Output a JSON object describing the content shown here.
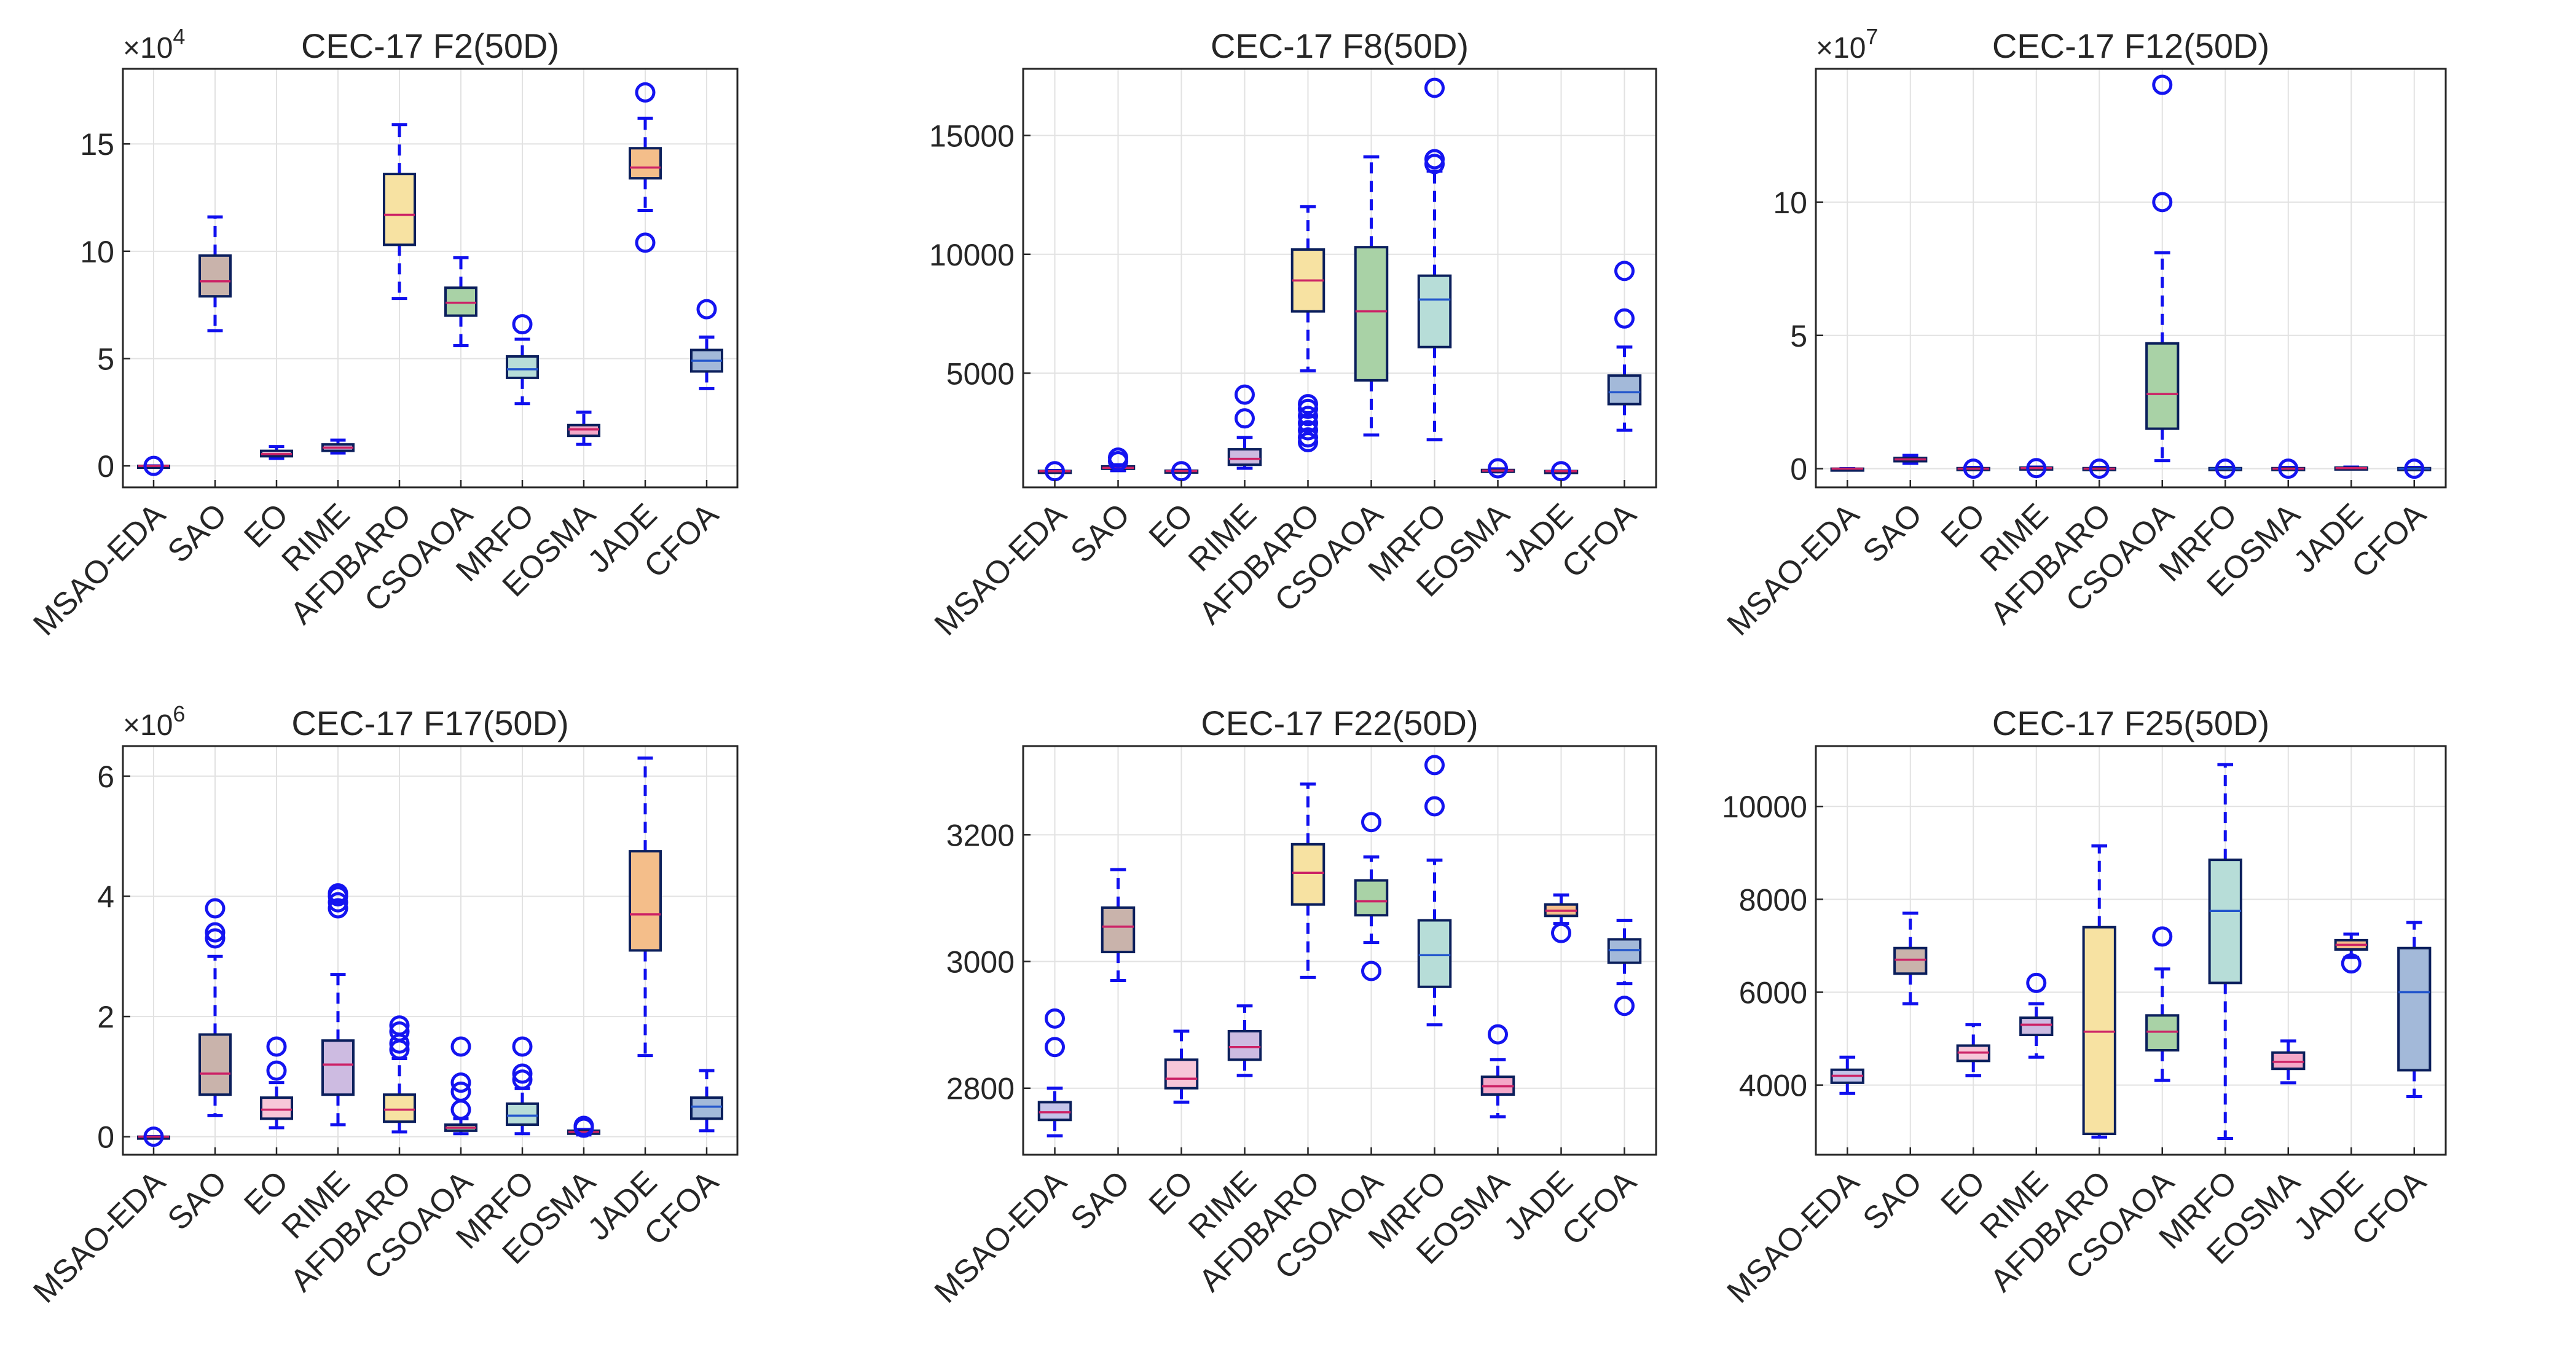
{
  "figure": {
    "label": "Box plots of algorithm results on CEC-17 functions (50D)"
  },
  "colors": {
    "box_edge": "#0b1f5c",
    "whisker": "#1010ee",
    "outlier": "#1414f0",
    "grid": "#e2e2e2",
    "axis": "#262626",
    "fills": [
      "#c3c3e9",
      "#c9b3ab",
      "#f7c6d8",
      "#cdbbe1",
      "#f7e2a2",
      "#a9d2a6",
      "#b7ddd8",
      "#f4a8c8",
      "#f4be8a",
      "#a3b9d9"
    ],
    "medians": [
      "#cc2266",
      "#cc2266",
      "#cc2266",
      "#cc2266",
      "#cc2266",
      "#cc2266",
      "#2255cc",
      "#cc2266",
      "#cc2266",
      "#2255cc"
    ]
  },
  "chart_data": [
    {
      "type": "box",
      "title": "CEC-17 F2(50D)",
      "exponent": "4",
      "categories": [
        "MSAO-EDA",
        "SAO",
        "EO",
        "RIME",
        "AFDBARO",
        "CSOAOA",
        "MRFO",
        "EOSMA",
        "JADE",
        "CFOA"
      ],
      "ylim": [
        -1,
        18.5
      ],
      "yticks": [
        0,
        5,
        10,
        15
      ],
      "ytick_labels": [
        "0",
        "5",
        "10",
        "15"
      ],
      "boxes": [
        {
          "min": 0,
          "q1": 0,
          "median": 0,
          "q3": 0,
          "max": 0,
          "outliers": [
            0
          ]
        },
        {
          "min": 6.3,
          "q1": 7.9,
          "median": 8.6,
          "q3": 9.8,
          "max": 11.6,
          "outliers": []
        },
        {
          "min": 0.35,
          "q1": 0.45,
          "median": 0.55,
          "q3": 0.7,
          "max": 0.9,
          "outliers": []
        },
        {
          "min": 0.6,
          "q1": 0.7,
          "median": 0.85,
          "q3": 1.0,
          "max": 1.2,
          "outliers": []
        },
        {
          "min": 7.8,
          "q1": 10.3,
          "median": 11.7,
          "q3": 13.6,
          "max": 15.9,
          "outliers": []
        },
        {
          "min": 5.6,
          "q1": 7.0,
          "median": 7.6,
          "q3": 8.3,
          "max": 9.7,
          "outliers": []
        },
        {
          "min": 2.9,
          "q1": 4.1,
          "median": 4.5,
          "q3": 5.1,
          "max": 5.9,
          "outliers": [
            6.6
          ]
        },
        {
          "min": 1.0,
          "q1": 1.4,
          "median": 1.7,
          "q3": 1.9,
          "max": 2.5,
          "outliers": []
        },
        {
          "min": 11.9,
          "q1": 13.4,
          "median": 13.9,
          "q3": 14.8,
          "max": 16.2,
          "outliers": [
            17.4,
            10.4
          ]
        },
        {
          "min": 3.6,
          "q1": 4.4,
          "median": 4.9,
          "q3": 5.4,
          "max": 6.0,
          "outliers": [
            7.3
          ]
        }
      ]
    },
    {
      "type": "box",
      "title": "CEC-17 F8(50D)",
      "exponent": "",
      "categories": [
        "MSAO-EDA",
        "SAO",
        "EO",
        "RIME",
        "AFDBARO",
        "CSOAOA",
        "MRFO",
        "EOSMA",
        "JADE",
        "CFOA"
      ],
      "ylim": [
        200,
        17800
      ],
      "yticks": [
        5000,
        10000,
        15000
      ],
      "ytick_labels": [
        "5000",
        "10000",
        "15000"
      ],
      "boxes": [
        {
          "min": 850,
          "q1": 870,
          "median": 880,
          "q3": 890,
          "max": 910,
          "outliers": [
            880
          ]
        },
        {
          "min": 900,
          "q1": 980,
          "median": 1020,
          "q3": 1080,
          "max": 1150,
          "outliers": [
            1300,
            1450
          ]
        },
        {
          "min": 850,
          "q1": 870,
          "median": 885,
          "q3": 900,
          "max": 920,
          "outliers": [
            880
          ]
        },
        {
          "min": 1000,
          "q1": 1150,
          "median": 1400,
          "q3": 1800,
          "max": 2300,
          "outliers": [
            3100,
            4100
          ]
        },
        {
          "min": 5100,
          "q1": 7600,
          "median": 8900,
          "q3": 10200,
          "max": 12000,
          "outliers": [
            3700,
            3500,
            3200,
            2900,
            2600,
            2300,
            2100
          ]
        },
        {
          "min": 2400,
          "q1": 4700,
          "median": 7600,
          "q3": 10300,
          "max": 14100,
          "outliers": []
        },
        {
          "min": 2200,
          "q1": 6100,
          "median": 8100,
          "q3": 9100,
          "max": 13500,
          "outliers": [
            13800,
            14000,
            17000
          ]
        },
        {
          "min": 850,
          "q1": 880,
          "median": 900,
          "q3": 930,
          "max": 980,
          "outliers": [
            1000
          ]
        },
        {
          "min": 870,
          "q1": 875,
          "median": 880,
          "q3": 885,
          "max": 890,
          "outliers": [
            880
          ]
        },
        {
          "min": 2600,
          "q1": 3700,
          "median": 4200,
          "q3": 4900,
          "max": 6100,
          "outliers": [
            7300,
            9300
          ]
        }
      ]
    },
    {
      "type": "box",
      "title": "CEC-17 F12(50D)",
      "exponent": "7",
      "categories": [
        "MSAO-EDA",
        "SAO",
        "EO",
        "RIME",
        "AFDBARO",
        "CSOAOA",
        "MRFO",
        "EOSMA",
        "JADE",
        "CFOA"
      ],
      "ylim": [
        -0.7,
        15
      ],
      "yticks": [
        0,
        5,
        10
      ],
      "ytick_labels": [
        "0",
        "5",
        "10"
      ],
      "boxes": [
        {
          "min": 0,
          "q1": 0,
          "median": 0,
          "q3": 0,
          "max": 0,
          "outliers": []
        },
        {
          "min": 0.2,
          "q1": 0.28,
          "median": 0.35,
          "q3": 0.4,
          "max": 0.5,
          "outliers": []
        },
        {
          "min": 0,
          "q1": 0,
          "median": 0,
          "q3": 0.02,
          "max": 0.05,
          "outliers": [
            0
          ]
        },
        {
          "min": 0,
          "q1": 0,
          "median": 0.02,
          "q3": 0.04,
          "max": 0.06,
          "outliers": [
            0.02
          ]
        },
        {
          "min": 0,
          "q1": 0,
          "median": 0,
          "q3": 0.02,
          "max": 0.05,
          "outliers": [
            0
          ]
        },
        {
          "min": 0.3,
          "q1": 1.5,
          "median": 2.8,
          "q3": 4.7,
          "max": 8.1,
          "outliers": [
            10.0,
            14.4
          ]
        },
        {
          "min": 0,
          "q1": 0,
          "median": 0,
          "q3": 0.02,
          "max": 0.05,
          "outliers": [
            0
          ]
        },
        {
          "min": 0,
          "q1": 0,
          "median": 0,
          "q3": 0.02,
          "max": 0.05,
          "outliers": [
            0
          ]
        },
        {
          "min": 0,
          "q1": 0.01,
          "median": 0.02,
          "q3": 0.04,
          "max": 0.06,
          "outliers": []
        },
        {
          "min": 0,
          "q1": 0,
          "median": 0,
          "q3": 0.02,
          "max": 0.05,
          "outliers": [
            0
          ]
        }
      ]
    },
    {
      "type": "box",
      "title": "CEC-17 F17(50D)",
      "exponent": "6",
      "categories": [
        "MSAO-EDA",
        "SAO",
        "EO",
        "RIME",
        "AFDBARO",
        "CSOAOA",
        "MRFO",
        "EOSMA",
        "JADE",
        "CFOA"
      ],
      "ylim": [
        -0.3,
        6.5
      ],
      "yticks": [
        0,
        2,
        4,
        6
      ],
      "ytick_labels": [
        "0",
        "2",
        "4",
        "6"
      ],
      "boxes": [
        {
          "min": 0,
          "q1": 0,
          "median": 0,
          "q3": 0,
          "max": 0,
          "outliers": [
            0
          ]
        },
        {
          "min": 0.35,
          "q1": 0.7,
          "median": 1.05,
          "q3": 1.7,
          "max": 3.0,
          "outliers": [
            3.3,
            3.4,
            3.8
          ]
        },
        {
          "min": 0.15,
          "q1": 0.3,
          "median": 0.45,
          "q3": 0.65,
          "max": 0.9,
          "outliers": [
            1.1,
            1.5
          ]
        },
        {
          "min": 0.2,
          "q1": 0.7,
          "median": 1.2,
          "q3": 1.6,
          "max": 2.7,
          "outliers": [
            3.8,
            3.9,
            4.0,
            4.05
          ]
        },
        {
          "min": 0.08,
          "q1": 0.25,
          "median": 0.45,
          "q3": 0.7,
          "max": 1.3,
          "outliers": [
            1.45,
            1.55,
            1.75,
            1.85
          ]
        },
        {
          "min": 0.05,
          "q1": 0.1,
          "median": 0.15,
          "q3": 0.2,
          "max": 0.3,
          "outliers": [
            0.45,
            0.75,
            0.9,
            1.5
          ]
        },
        {
          "min": 0.05,
          "q1": 0.2,
          "median": 0.35,
          "q3": 0.55,
          "max": 0.8,
          "outliers": [
            0.95,
            1.05,
            1.5
          ]
        },
        {
          "min": 0.03,
          "q1": 0.05,
          "median": 0.08,
          "q3": 0.1,
          "max": 0.12,
          "outliers": [
            0.15,
            0.18
          ]
        },
        {
          "min": 1.35,
          "q1": 3.1,
          "median": 3.7,
          "q3": 4.75,
          "max": 6.3,
          "outliers": []
        },
        {
          "min": 0.1,
          "q1": 0.3,
          "median": 0.5,
          "q3": 0.65,
          "max": 1.1,
          "outliers": []
        }
      ]
    },
    {
      "type": "box",
      "title": "CEC-17 F22(50D)",
      "exponent": "",
      "categories": [
        "MSAO-EDA",
        "SAO",
        "EO",
        "RIME",
        "AFDBARO",
        "CSOAOA",
        "MRFO",
        "EOSMA",
        "JADE",
        "CFOA"
      ],
      "ylim": [
        2695,
        3340
      ],
      "yticks": [
        2800,
        3000,
        3200
      ],
      "ytick_labels": [
        "2800",
        "3000",
        "3200"
      ],
      "boxes": [
        {
          "min": 2725,
          "q1": 2750,
          "median": 2762,
          "q3": 2778,
          "max": 2800,
          "outliers": [
            2865,
            2910
          ]
        },
        {
          "min": 2970,
          "q1": 3015,
          "median": 3055,
          "q3": 3085,
          "max": 3145,
          "outliers": []
        },
        {
          "min": 2778,
          "q1": 2800,
          "median": 2815,
          "q3": 2845,
          "max": 2890,
          "outliers": []
        },
        {
          "min": 2820,
          "q1": 2845,
          "median": 2865,
          "q3": 2890,
          "max": 2930,
          "outliers": []
        },
        {
          "min": 2975,
          "q1": 3090,
          "median": 3140,
          "q3": 3185,
          "max": 3280,
          "outliers": []
        },
        {
          "min": 3030,
          "q1": 3073,
          "median": 3095,
          "q3": 3128,
          "max": 3165,
          "outliers": [
            3220,
            2985
          ]
        },
        {
          "min": 2900,
          "q1": 2960,
          "median": 3010,
          "q3": 3065,
          "max": 3160,
          "outliers": [
            3245,
            3310
          ]
        },
        {
          "min": 2755,
          "q1": 2790,
          "median": 2803,
          "q3": 2818,
          "max": 2845,
          "outliers": [
            2885
          ]
        },
        {
          "min": 3060,
          "q1": 3072,
          "median": 3080,
          "q3": 3090,
          "max": 3105,
          "outliers": [
            3045
          ]
        },
        {
          "min": 2965,
          "q1": 2998,
          "median": 3018,
          "q3": 3035,
          "max": 3065,
          "outliers": [
            2930
          ]
        }
      ]
    },
    {
      "type": "box",
      "title": "CEC-17 F25(50D)",
      "exponent": "",
      "categories": [
        "MSAO-EDA",
        "SAO",
        "EO",
        "RIME",
        "AFDBARO",
        "CSOAOA",
        "MRFO",
        "EOSMA",
        "JADE",
        "CFOA"
      ],
      "ylim": [
        2500,
        11300
      ],
      "yticks": [
        4000,
        6000,
        8000,
        10000
      ],
      "ytick_labels": [
        "4000",
        "6000",
        "8000",
        "10000"
      ],
      "boxes": [
        {
          "min": 3820,
          "q1": 4050,
          "median": 4200,
          "q3": 4330,
          "max": 4600,
          "outliers": []
        },
        {
          "min": 5750,
          "q1": 6400,
          "median": 6700,
          "q3": 6950,
          "max": 7700,
          "outliers": []
        },
        {
          "min": 4200,
          "q1": 4520,
          "median": 4700,
          "q3": 4850,
          "max": 5300,
          "outliers": []
        },
        {
          "min": 4600,
          "q1": 5080,
          "median": 5300,
          "q3": 5450,
          "max": 5750,
          "outliers": [
            6200
          ]
        },
        {
          "min": 2880,
          "q1": 2950,
          "median": 5150,
          "q3": 7400,
          "max": 9150,
          "outliers": []
        },
        {
          "min": 4100,
          "q1": 4750,
          "median": 5150,
          "q3": 5500,
          "max": 6500,
          "outliers": [
            7200
          ]
        },
        {
          "min": 2850,
          "q1": 6200,
          "median": 7750,
          "q3": 8850,
          "max": 10900,
          "outliers": []
        },
        {
          "min": 4050,
          "q1": 4350,
          "median": 4500,
          "q3": 4700,
          "max": 4950,
          "outliers": []
        },
        {
          "min": 6750,
          "q1": 6920,
          "median": 7020,
          "q3": 7120,
          "max": 7250,
          "outliers": [
            6620
          ]
        },
        {
          "min": 3750,
          "q1": 4320,
          "median": 6000,
          "q3": 6950,
          "max": 7500,
          "outliers": []
        }
      ]
    }
  ]
}
